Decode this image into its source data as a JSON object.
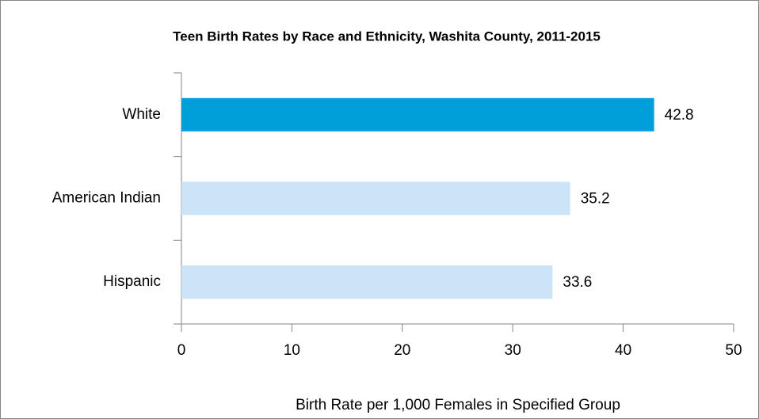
{
  "chart_data": {
    "type": "bar",
    "orientation": "horizontal",
    "title": "Teen Birth Rates by Race and Ethnicity, Washita County, 2011-2015",
    "x_label": "Birth Rate per 1,000 Females in Specified Group",
    "categories": [
      "White",
      "American Indian",
      "Hispanic"
    ],
    "values": [
      42.8,
      35.2,
      33.6
    ],
    "colors": [
      "#009fd9",
      "#cce4f8",
      "#cce4f8"
    ],
    "xlim": [
      0,
      50
    ],
    "xticks": [
      0,
      10,
      20,
      30,
      40,
      50
    ],
    "grid": false
  }
}
